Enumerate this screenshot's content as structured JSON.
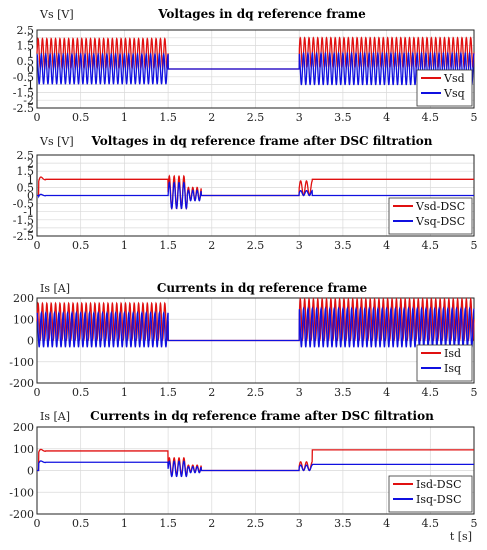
{
  "colors": {
    "series1": "#e01010",
    "series2": "#1010e0",
    "grid": "#d9d9d9",
    "axis": "#222222"
  },
  "x_label": "t [s]",
  "chart_data": [
    {
      "type": "line",
      "title": "Voltages in dq reference frame",
      "ylabel": "Vs [V]",
      "xlim": [
        0,
        5
      ],
      "ylim": [
        -2.5,
        2.5
      ],
      "xticks": [
        "0",
        "0.5",
        "1",
        "1.5",
        "2",
        "2.5",
        "3",
        "3.5",
        "4",
        "4.5",
        "5"
      ],
      "yticks": [
        "2.5",
        "2",
        "1.5",
        "1",
        "0.5",
        "0",
        "-0.5",
        "-1",
        "-1.5",
        "-2",
        "-2.5"
      ],
      "grid": true,
      "legend": "bottom-right",
      "series": [
        {
          "name": "Vsd",
          "color": "#e01010",
          "kind": "osc",
          "hz": 20,
          "segments": [
            [
              0,
              1.5,
              1.0,
              0.95
            ],
            [
              1.5,
              3.0,
              0.0,
              0.0
            ],
            [
              3.0,
              5.0,
              1.05,
              0.95
            ]
          ]
        },
        {
          "name": "Vsq",
          "color": "#1010e0",
          "kind": "osc",
          "hz": 20,
          "phase": 1.57,
          "segments": [
            [
              0,
              1.5,
              0.0,
              0.95
            ],
            [
              1.5,
              3.0,
              0.0,
              0.0
            ],
            [
              3.0,
              5.0,
              0.0,
              1.0
            ]
          ]
        }
      ]
    },
    {
      "type": "line",
      "title": "Voltages in dq reference frame after DSC filtration",
      "ylabel": "Vs [V]",
      "xlim": [
        0,
        5
      ],
      "ylim": [
        -2.5,
        2.5
      ],
      "xticks": [
        "0",
        "0.5",
        "1",
        "1.5",
        "2",
        "2.5",
        "3",
        "3.5",
        "4",
        "4.5",
        "5"
      ],
      "yticks": [
        "2.5",
        "2",
        "1.5",
        "1",
        "0.5",
        "0",
        "-0.5",
        "-1",
        "-1.5",
        "-2",
        "-2.5"
      ],
      "grid": true,
      "legend": "bottom-right",
      "series": [
        {
          "name": "Vsd-DSC",
          "color": "#e01010",
          "kind": "dsc",
          "steady1": 1.0,
          "steady2": 1.0,
          "trans1": 1.0,
          "trans2": 0.9,
          "startAmp": 0.6
        },
        {
          "name": "Vsq-DSC",
          "color": "#1010e0",
          "kind": "dsc",
          "steady1": 0.0,
          "steady2": 0.0,
          "trans1": 0.8,
          "trans2": 0.3,
          "startAmp": 0.3
        }
      ]
    },
    {
      "type": "line",
      "title": "Currents in dq reference frame",
      "ylabel": "Is [A]",
      "xlim": [
        0,
        5
      ],
      "ylim": [
        -200,
        200
      ],
      "xticks": [
        "0",
        "0.5",
        "1",
        "1.5",
        "2",
        "2.5",
        "3",
        "3.5",
        "4",
        "4.5",
        "5"
      ],
      "yticks": [
        "200",
        "100",
        "0",
        "-100",
        "-200"
      ],
      "grid": true,
      "legend": "bottom-right",
      "series": [
        {
          "name": "Isd",
          "color": "#e01010",
          "kind": "osc",
          "hz": 20,
          "segments": [
            [
              0,
              1.5,
              90,
              85
            ],
            [
              1.5,
              3.0,
              0,
              0
            ],
            [
              3.0,
              5.0,
              100,
              95
            ]
          ]
        },
        {
          "name": "Isq",
          "color": "#1010e0",
          "kind": "osc",
          "hz": 20,
          "phase": 1.57,
          "segments": [
            [
              0,
              1.5,
              50,
              80
            ],
            [
              1.5,
              3.0,
              0,
              0
            ],
            [
              3.0,
              5.0,
              60,
              90
            ]
          ]
        }
      ]
    },
    {
      "type": "line",
      "title": "Currents in dq reference frame after DSC filtration",
      "ylabel": "Is [A]",
      "xlim": [
        0,
        5
      ],
      "ylim": [
        -200,
        200
      ],
      "xticks": [
        "0",
        "0.5",
        "1",
        "1.5",
        "2",
        "2.5",
        "3",
        "3.5",
        "4",
        "4.5",
        "5"
      ],
      "yticks": [
        "200",
        "100",
        "0",
        "-100",
        "-200"
      ],
      "grid": true,
      "legend": "bottom-right",
      "series": [
        {
          "name": "Isd-DSC",
          "color": "#e01010",
          "kind": "dsc",
          "steady1": 90,
          "steady2": 95,
          "trans1": 40,
          "trans2": 40,
          "startAmp": 30
        },
        {
          "name": "Isq-DSC",
          "color": "#1010e0",
          "kind": "dsc",
          "steady1": 38,
          "steady2": 28,
          "trans1": 35,
          "trans2": 25,
          "startAmp": 25
        }
      ]
    }
  ]
}
